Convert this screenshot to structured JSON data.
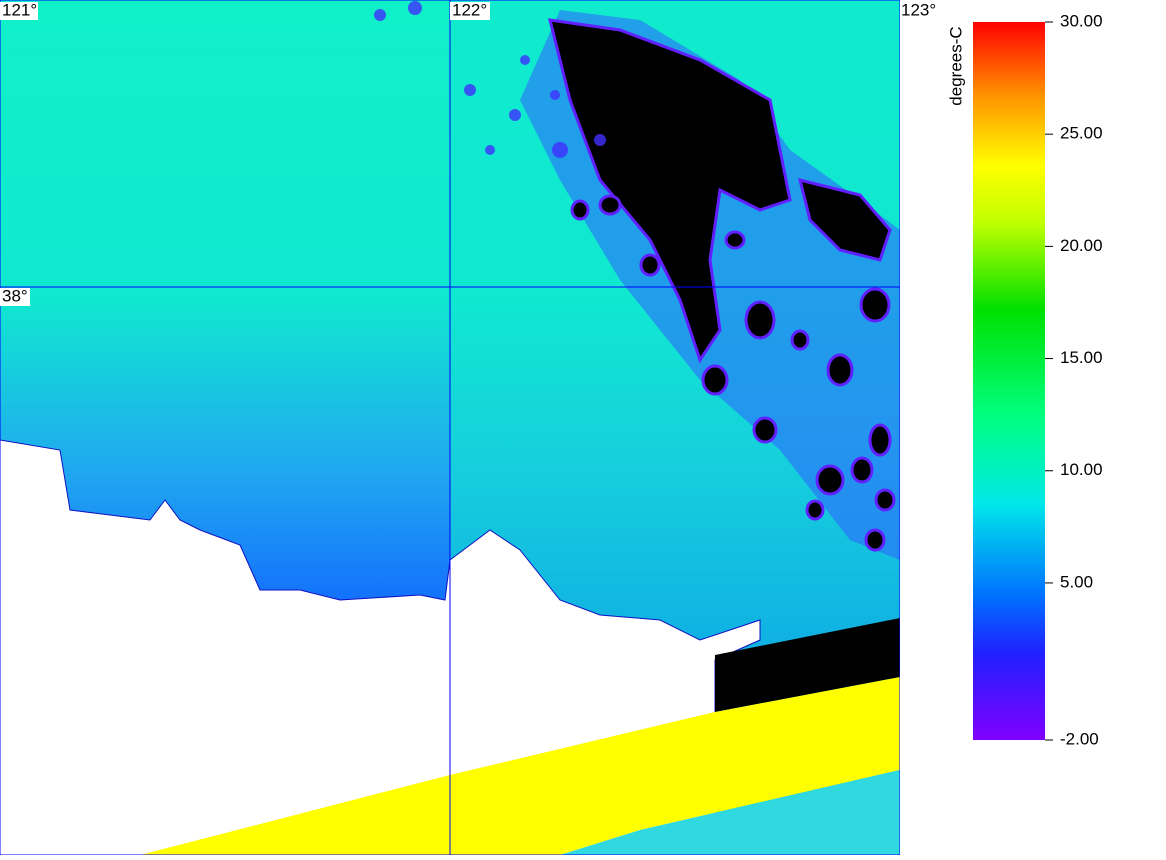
{
  "map": {
    "lon_labels": [
      "121°",
      "122°",
      "123°"
    ],
    "lat_labels": [
      "38°"
    ]
  },
  "colorbar": {
    "label": "degrees-C",
    "lim": [
      -2,
      30
    ],
    "ticks": [
      {
        "value": 30,
        "label": "30.00"
      },
      {
        "value": 25,
        "label": "25.00"
      },
      {
        "value": 20,
        "label": "20.00"
      },
      {
        "value": 15,
        "label": "15.00"
      },
      {
        "value": 10,
        "label": "10.00"
      },
      {
        "value": 5,
        "label": "5.00"
      },
      {
        "value": -2,
        "label": "-2.00"
      }
    ]
  }
}
